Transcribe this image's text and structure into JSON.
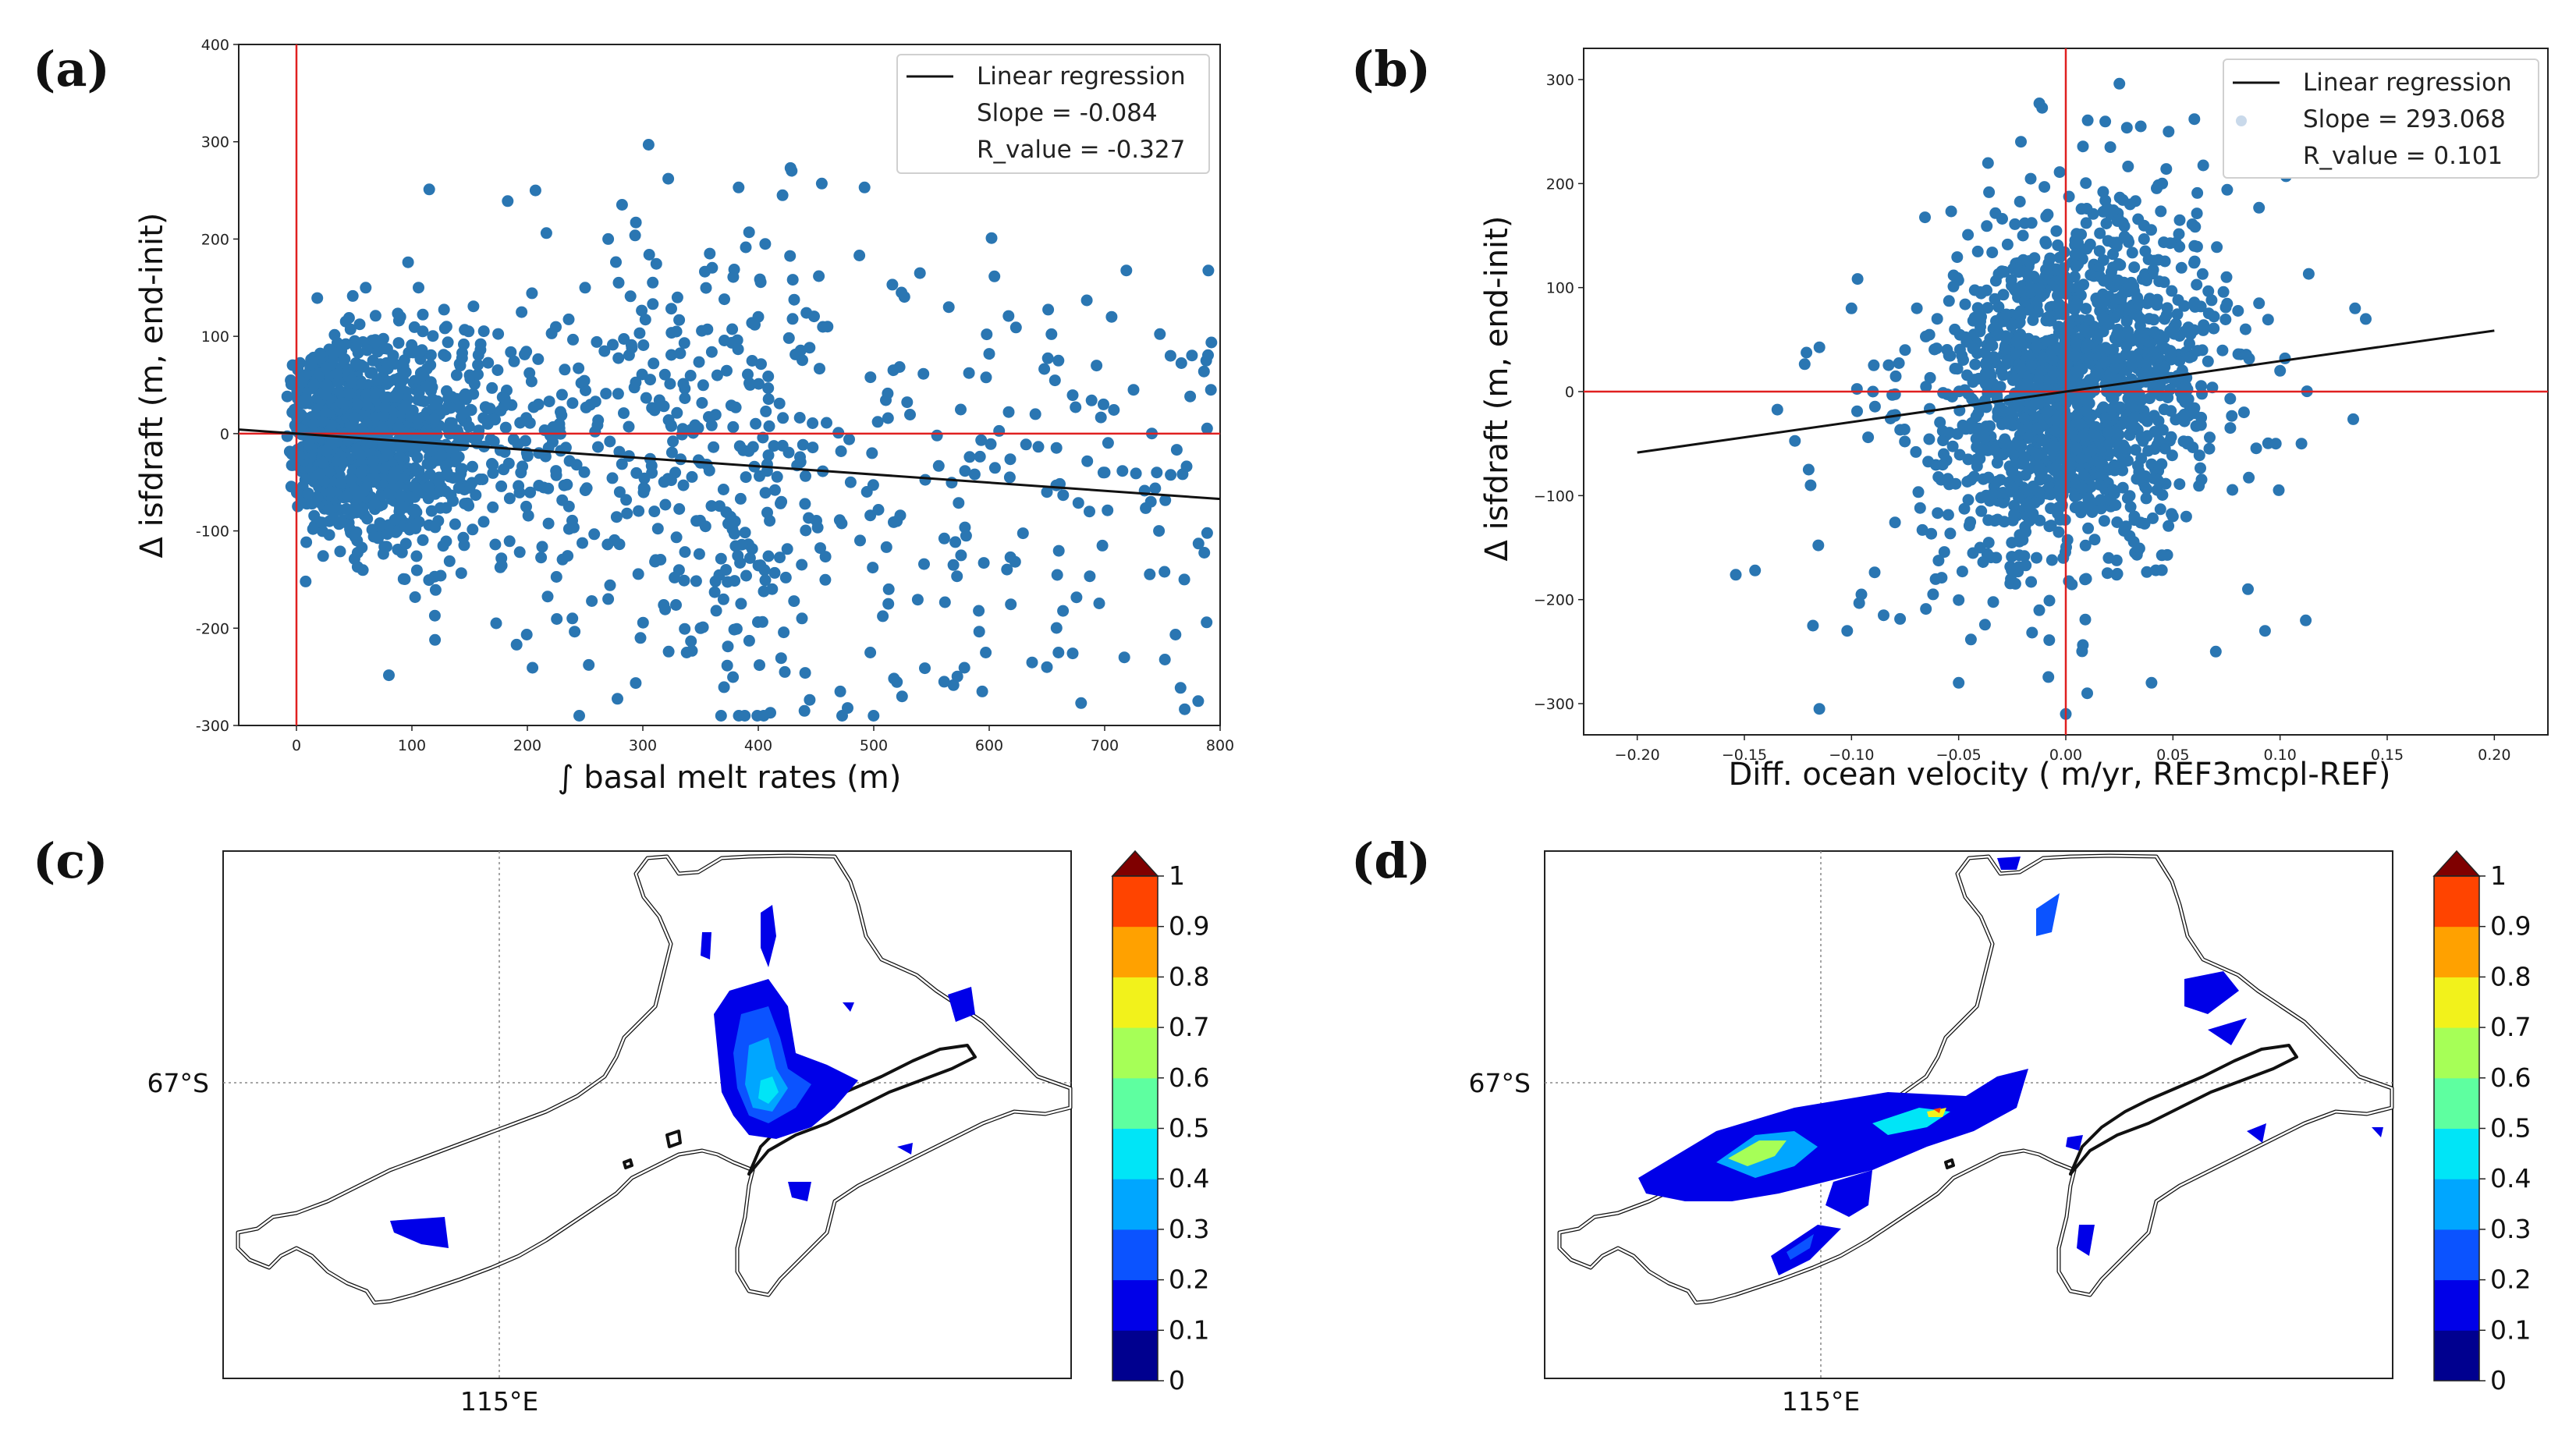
{
  "panels": {
    "a": {
      "label": "(a)"
    },
    "b": {
      "label": "(b)"
    },
    "c": {
      "label": "(c)"
    },
    "d": {
      "label": "(d)"
    }
  },
  "colors": {
    "points": "#2a76b2",
    "regression": "#111111",
    "zero_lines": "#e02020",
    "coastline": "#111111"
  },
  "chart_data": [
    {
      "id": "a",
      "type": "scatter",
      "title": "",
      "xlabel": "∫ basal melt rates (m)",
      "ylabel": "Δ isfdraft (m, end-init)",
      "xlim": [
        -50,
        800
      ],
      "ylim": [
        -300,
        400
      ],
      "xticks": [
        0,
        100,
        200,
        300,
        400,
        500,
        600,
        700,
        800
      ],
      "yticks": [
        -300,
        -200,
        -100,
        0,
        100,
        200,
        300,
        400
      ],
      "legend": {
        "position": "top-right",
        "entries": [
          "Linear regression",
          "Slope = -0.084",
          "R_value = -0.327"
        ]
      },
      "regression": {
        "slope": -0.084,
        "intercept": 0.0,
        "x_range": [
          -50,
          800
        ]
      },
      "zero_lines": {
        "x": 0,
        "y": 0
      },
      "sample_points": [
        [
          305,
          297
        ],
        [
          322,
          262
        ],
        [
          383,
          253
        ],
        [
          421,
          245
        ],
        [
          455,
          257
        ],
        [
          492,
          253
        ],
        [
          207,
          250
        ],
        [
          115,
          251
        ],
        [
          183,
          239
        ],
        [
          270,
          200
        ],
        [
          294,
          217
        ],
        [
          358,
          185
        ],
        [
          392,
          207
        ],
        [
          406,
          195
        ],
        [
          540,
          165
        ],
        [
          602,
          201
        ],
        [
          706,
          120
        ],
        [
          565,
          130
        ],
        [
          788,
          75
        ],
        [
          792,
          45
        ],
        [
          757,
          80
        ],
        [
          725,
          45
        ],
        [
          699,
          30
        ],
        [
          640,
          20
        ],
        [
          580,
          -105
        ],
        [
          594,
          -265
        ],
        [
          650,
          -240
        ],
        [
          717,
          -230
        ],
        [
          781,
          -275
        ],
        [
          769,
          -150
        ],
        [
          747,
          -100
        ],
        [
          440,
          -285
        ],
        [
          423,
          -245
        ],
        [
          471,
          -265
        ],
        [
          497,
          -225
        ],
        [
          561,
          -255
        ],
        [
          597,
          -225
        ],
        [
          338,
          -225
        ],
        [
          298,
          -210
        ],
        [
          350,
          -200
        ],
        [
          120,
          -212
        ],
        [
          173,
          -195
        ],
        [
          239,
          -190
        ],
        [
          270,
          -170
        ],
        [
          372,
          -140
        ],
        [
          513,
          -160
        ],
        [
          53,
          -137
        ],
        [
          8,
          -152
        ],
        [
          600,
          82
        ],
        [
          660,
          75
        ],
        [
          330,
          140
        ],
        [
          400,
          120
        ],
        [
          460,
          110
        ],
        [
          250,
          150
        ],
        [
          60,
          150
        ],
        [
          90,
          120
        ],
        [
          130,
          110
        ],
        [
          25,
          40
        ],
        [
          40,
          -30
        ],
        [
          15,
          10
        ],
        [
          70,
          55
        ],
        [
          85,
          -40
        ],
        [
          150,
          60
        ],
        [
          210,
          -20
        ],
        [
          230,
          40
        ],
        [
          280,
          -60
        ],
        [
          310,
          -80
        ],
        [
          350,
          -30
        ],
        [
          420,
          -70
        ],
        [
          480,
          -50
        ],
        [
          520,
          -90
        ],
        [
          650,
          -60
        ],
        [
          700,
          -40
        ],
        [
          740,
          -70
        ]
      ]
    },
    {
      "id": "b",
      "type": "scatter",
      "title": "",
      "xlabel": "Diff. ocean velocity ( m/yr, REF3mcpl-REF)",
      "ylabel": "Δ isfdraft (m, end-init)",
      "xlim": [
        -0.225,
        0.225
      ],
      "ylim": [
        -330,
        330
      ],
      "xticks": [
        -0.2,
        -0.15,
        -0.1,
        -0.05,
        0.0,
        0.05,
        0.1,
        0.15,
        0.2
      ],
      "xtick_labels": [
        "−0.20",
        "−0.15",
        "−0.10",
        "−0.05",
        "0.00",
        "0.05",
        "0.10",
        "0.15",
        "0.20"
      ],
      "yticks": [
        -300,
        -200,
        -100,
        0,
        100,
        200,
        300
      ],
      "ytick_labels": [
        "−300",
        "−200",
        "−100",
        "0",
        "100",
        "200",
        "300"
      ],
      "legend": {
        "position": "top-right",
        "entries": [
          "Linear regression",
          "Slope = 293.068",
          "R_value = 0.101"
        ]
      },
      "regression": {
        "slope": 293.068,
        "intercept": 0.0,
        "x_range": [
          -0.2,
          0.2
        ]
      },
      "zero_lines": {
        "x": 0,
        "y": 0
      },
      "sample_points": [
        [
          0.025,
          296
        ],
        [
          0.035,
          255
        ],
        [
          0.048,
          250
        ],
        [
          0.06,
          262
        ],
        [
          0.045,
          200
        ],
        [
          0.135,
          80
        ],
        [
          -0.145,
          -172
        ],
        [
          -0.115,
          -305
        ],
        [
          -0.118,
          -225
        ],
        [
          -0.102,
          -230
        ],
        [
          -0.085,
          -215
        ],
        [
          0.112,
          -220
        ],
        [
          0.093,
          -230
        ],
        [
          0.085,
          -190
        ],
        [
          0.1,
          20
        ],
        [
          0.098,
          -50
        ],
        [
          -0.1,
          80
        ],
        [
          -0.09,
          0
        ],
        [
          0.0,
          -310
        ],
        [
          -0.05,
          -280
        ],
        [
          0.07,
          -250
        ],
        [
          0.01,
          -290
        ],
        [
          0.04,
          -280
        ],
        [
          -0.12,
          -75
        ],
        [
          0.11,
          -50
        ],
        [
          -0.06,
          70
        ],
        [
          0.06,
          140
        ],
        [
          0.03,
          180
        ],
        [
          -0.02,
          150
        ],
        [
          -0.04,
          -150
        ],
        [
          0.02,
          -160
        ],
        [
          0.075,
          110
        ],
        [
          -0.075,
          40
        ],
        [
          0.05,
          -120
        ]
      ]
    },
    {
      "id": "c",
      "type": "heatmap",
      "title": "",
      "latitude_label": "67°S",
      "longitude_label": "115°E",
      "colorbar": {
        "min": 0,
        "max": 1,
        "ticks": [
          "0",
          "0.1",
          "0.2",
          "0.3",
          "0.4",
          "0.5",
          "0.6",
          "0.7",
          "0.8",
          "0.9",
          "1"
        ],
        "extend": "max"
      },
      "colorbar_colors": [
        "#00008f",
        "#0000e8",
        "#0b53ff",
        "#00a6ff",
        "#00e5f7",
        "#5effa0",
        "#a6ff57",
        "#f2f21b",
        "#ffa100",
        "#ff4400",
        "#c80000",
        "#7f0000"
      ],
      "value_range_in_plot": [
        0,
        0.4
      ]
    },
    {
      "id": "d",
      "type": "heatmap",
      "title": "",
      "latitude_label": "67°S",
      "longitude_label": "115°E",
      "colorbar": {
        "min": 0,
        "max": 1,
        "ticks": [
          "0",
          "0.1",
          "0.2",
          "0.3",
          "0.4",
          "0.5",
          "0.6",
          "0.7",
          "0.8",
          "0.9",
          "1"
        ],
        "extend": "max"
      },
      "colorbar_colors": [
        "#00008f",
        "#0000e8",
        "#0b53ff",
        "#00a6ff",
        "#00e5f7",
        "#5effa0",
        "#a6ff57",
        "#f2f21b",
        "#ffa100",
        "#ff4400",
        "#c80000",
        "#7f0000"
      ],
      "value_range_in_plot": [
        0,
        0.9
      ]
    }
  ]
}
